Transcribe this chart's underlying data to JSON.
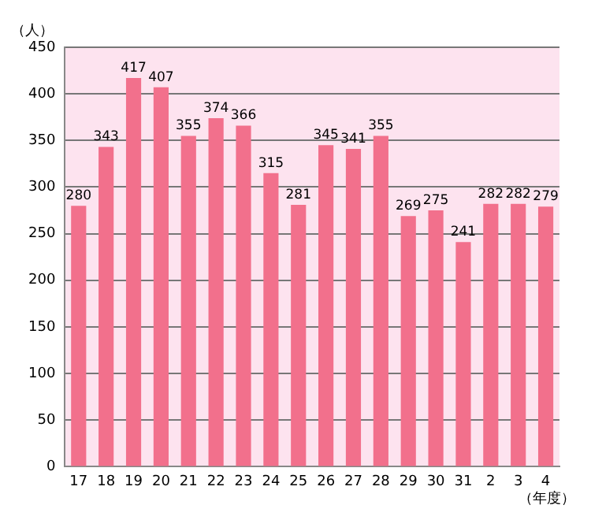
{
  "chart_data": {
    "type": "bar",
    "ylabel": "（人）",
    "xlabel": "（年度）",
    "categories": [
      "17",
      "18",
      "19",
      "20",
      "21",
      "22",
      "23",
      "24",
      "25",
      "26",
      "27",
      "28",
      "29",
      "30",
      "31",
      "2",
      "3",
      "4"
    ],
    "values": [
      280,
      343,
      417,
      407,
      355,
      374,
      366,
      315,
      281,
      345,
      341,
      355,
      269,
      275,
      241,
      282,
      282,
      279
    ],
    "color": "#f2708c",
    "ylim": [
      0,
      450
    ],
    "yticks": [
      0,
      50,
      100,
      150,
      200,
      250,
      300,
      350,
      400,
      450
    ],
    "grid": "y",
    "data_labels": true
  }
}
